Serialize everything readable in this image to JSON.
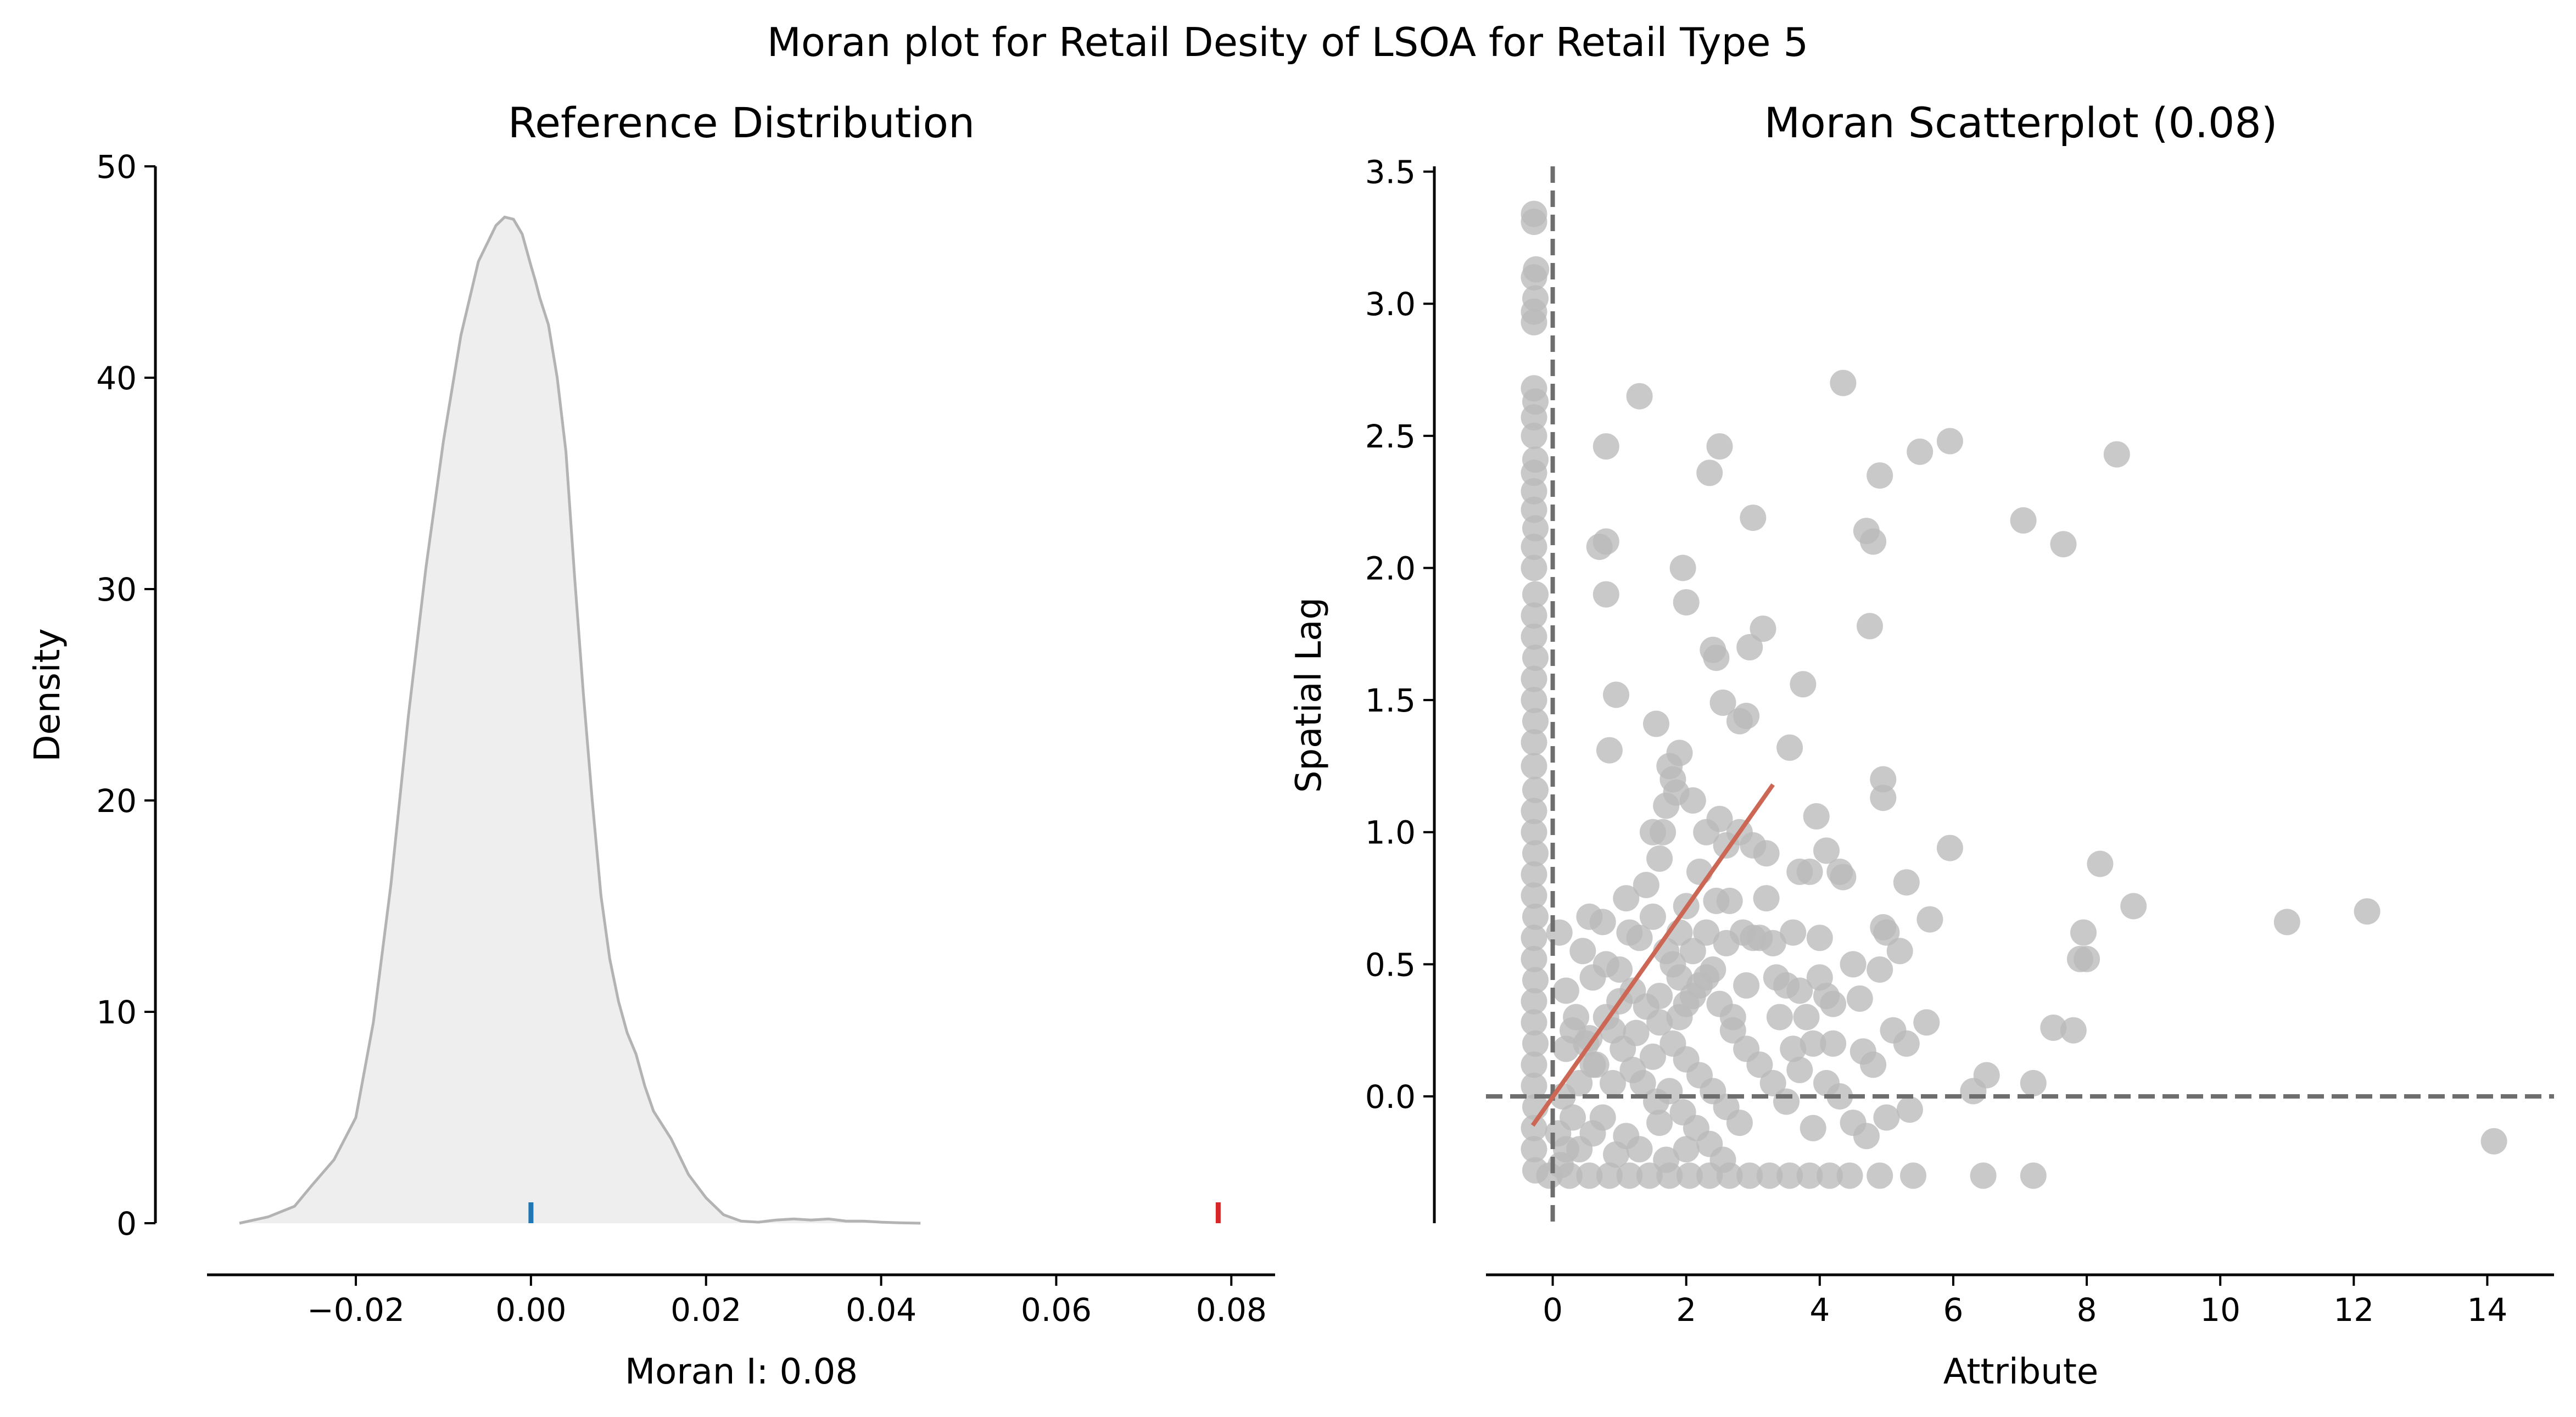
{
  "figure": {
    "suptitle": "Moran plot for Retail Desity of LSOA for Retail Type 5"
  },
  "chart_data": [
    {
      "type": "area",
      "title": "Reference Distribution",
      "xlabel": "Moran I: 0.08",
      "ylabel": "Density",
      "xlim": [
        -0.037,
        0.085
      ],
      "ylim": [
        0,
        50
      ],
      "x_ticks": [
        -0.02,
        0.0,
        0.02,
        0.04,
        0.06,
        0.08
      ],
      "x_tick_labels": [
        "−0.02",
        "0.00",
        "0.02",
        "0.04",
        "0.06",
        "0.08"
      ],
      "y_ticks": [
        0,
        10,
        20,
        30,
        40,
        50
      ],
      "y_tick_labels": [
        "0",
        "10",
        "20",
        "30",
        "40",
        "50"
      ],
      "grid": false,
      "fill_color": "#eeeeee",
      "line_color": "#b3b3b3",
      "kde": {
        "x": [
          -0.0333,
          -0.03,
          -0.027,
          -0.025,
          -0.0225,
          -0.02,
          -0.018,
          -0.016,
          -0.014,
          -0.012,
          -0.01,
          -0.008,
          -0.006,
          -0.004,
          -0.003,
          -0.002,
          -0.001,
          0.0,
          0.0005,
          0.001,
          0.002,
          0.003,
          0.004,
          0.005,
          0.006,
          0.007,
          0.008,
          0.009,
          0.01,
          0.011,
          0.012,
          0.013,
          0.014,
          0.016,
          0.018,
          0.02,
          0.022,
          0.024,
          0.026,
          0.028,
          0.03,
          0.032,
          0.034,
          0.036,
          0.038,
          0.04,
          0.042,
          0.0445
        ],
        "density": [
          0,
          0.3,
          0.8,
          1.8,
          3.0,
          5.0,
          9.5,
          16.0,
          24.0,
          31.0,
          37.0,
          42.0,
          45.5,
          47.2,
          47.6,
          47.5,
          46.8,
          45.3,
          44.6,
          43.8,
          42.5,
          40.0,
          36.5,
          30.5,
          25.0,
          20.0,
          15.5,
          12.5,
          10.5,
          9.0,
          8.0,
          6.5,
          5.3,
          4.0,
          2.3,
          1.2,
          0.4,
          0.1,
          0.05,
          0.15,
          0.2,
          0.15,
          0.2,
          0.1,
          0.1,
          0.05,
          0.02,
          0
        ]
      },
      "rug_markers": [
        {
          "x": 0.0,
          "color": "#1f77b4"
        },
        {
          "x": 0.0785,
          "color": "#d62728"
        }
      ]
    },
    {
      "type": "scatter",
      "title": "Moran Scatterplot (0.08)",
      "xlabel": "Attribute",
      "ylabel": "Spatial Lag",
      "xlim": [
        -1.0,
        15.0
      ],
      "ylim": [
        -0.48,
        3.52
      ],
      "x_ticks": [
        0,
        2,
        4,
        6,
        8,
        10,
        12,
        14
      ],
      "x_tick_labels": [
        "0",
        "2",
        "4",
        "6",
        "8",
        "10",
        "12",
        "14"
      ],
      "y_ticks": [
        0.0,
        0.5,
        1.0,
        1.5,
        2.0,
        2.5,
        3.0,
        3.5
      ],
      "y_tick_labels": [
        "0.0",
        "0.5",
        "1.0",
        "1.5",
        "2.0",
        "2.5",
        "3.0",
        "3.5"
      ],
      "grid": false,
      "point_color": "#bababa",
      "regression_color": "#cc6655",
      "reference_lines_color": "#6e6e6e",
      "reference_lines": {
        "x": 0,
        "y": 0
      },
      "regression_line": {
        "x": [
          -0.3,
          3.3
        ],
        "y": [
          -0.11,
          1.18
        ]
      },
      "points": [
        [
          -0.28,
          3.34
        ],
        [
          -0.28,
          3.31
        ],
        [
          -0.25,
          3.13
        ],
        [
          -0.28,
          3.1
        ],
        [
          -0.26,
          3.02
        ],
        [
          -0.28,
          2.97
        ],
        [
          -0.28,
          2.93
        ],
        [
          -0.28,
          2.68
        ],
        [
          -0.26,
          2.63
        ],
        [
          -0.28,
          2.57
        ],
        [
          -0.28,
          2.5
        ],
        [
          -0.26,
          2.41
        ],
        [
          -0.28,
          2.36
        ],
        [
          -0.28,
          2.29
        ],
        [
          -0.28,
          2.22
        ],
        [
          -0.26,
          2.15
        ],
        [
          -0.28,
          2.08
        ],
        [
          -0.28,
          2.0
        ],
        [
          -0.26,
          1.9
        ],
        [
          -0.28,
          1.82
        ],
        [
          -0.28,
          1.74
        ],
        [
          -0.26,
          1.66
        ],
        [
          -0.28,
          1.58
        ],
        [
          -0.28,
          1.5
        ],
        [
          -0.26,
          1.42
        ],
        [
          -0.28,
          1.34
        ],
        [
          -0.28,
          1.25
        ],
        [
          -0.26,
          1.16
        ],
        [
          -0.28,
          1.08
        ],
        [
          -0.28,
          1.0
        ],
        [
          -0.26,
          0.92
        ],
        [
          -0.28,
          0.84
        ],
        [
          -0.28,
          0.76
        ],
        [
          -0.26,
          0.68
        ],
        [
          -0.28,
          0.6
        ],
        [
          -0.28,
          0.52
        ],
        [
          -0.26,
          0.44
        ],
        [
          -0.28,
          0.36
        ],
        [
          -0.28,
          0.28
        ],
        [
          -0.26,
          0.2
        ],
        [
          -0.28,
          0.12
        ],
        [
          -0.28,
          0.04
        ],
        [
          -0.26,
          -0.04
        ],
        [
          -0.28,
          -0.12
        ],
        [
          -0.28,
          -0.2
        ],
        [
          -0.26,
          -0.28
        ],
        [
          -0.05,
          -0.3
        ],
        [
          0.25,
          -0.3
        ],
        [
          0.55,
          -0.3
        ],
        [
          0.85,
          -0.3
        ],
        [
          1.15,
          -0.3
        ],
        [
          1.45,
          -0.3
        ],
        [
          1.75,
          -0.3
        ],
        [
          2.05,
          -0.3
        ],
        [
          2.35,
          -0.3
        ],
        [
          2.65,
          -0.3
        ],
        [
          2.95,
          -0.3
        ],
        [
          3.25,
          -0.3
        ],
        [
          3.55,
          -0.3
        ],
        [
          3.85,
          -0.3
        ],
        [
          4.15,
          -0.3
        ],
        [
          4.45,
          -0.3
        ],
        [
          4.9,
          -0.3
        ],
        [
          5.4,
          -0.3
        ],
        [
          6.45,
          -0.3
        ],
        [
          7.2,
          -0.3
        ],
        [
          0.12,
          -0.26
        ],
        [
          0.2,
          -0.2
        ],
        [
          0.08,
          -0.14
        ],
        [
          0.3,
          -0.08
        ],
        [
          0.15,
          0.0
        ],
        [
          0.4,
          0.05
        ],
        [
          0.6,
          0.12
        ],
        [
          0.2,
          0.18
        ],
        [
          0.3,
          0.25
        ],
        [
          0.55,
          0.22
        ],
        [
          0.8,
          0.3
        ],
        [
          1.0,
          0.36
        ],
        [
          1.2,
          0.4
        ],
        [
          1.4,
          0.34
        ],
        [
          1.6,
          0.28
        ],
        [
          1.8,
          0.2
        ],
        [
          2.0,
          0.14
        ],
        [
          2.2,
          0.08
        ],
        [
          2.4,
          0.02
        ],
        [
          2.6,
          -0.04
        ],
        [
          2.8,
          -0.1
        ],
        [
          1.1,
          -0.15
        ],
        [
          1.3,
          -0.2
        ],
        [
          1.6,
          -0.1
        ],
        [
          0.9,
          0.05
        ],
        [
          1.2,
          0.1
        ],
        [
          1.5,
          0.15
        ],
        [
          1.9,
          0.3
        ],
        [
          2.1,
          0.38
        ],
        [
          2.3,
          0.45
        ],
        [
          2.5,
          0.35
        ],
        [
          2.7,
          0.25
        ],
        [
          2.9,
          0.18
        ],
        [
          3.1,
          0.12
        ],
        [
          3.3,
          0.05
        ],
        [
          3.5,
          -0.02
        ],
        [
          3.7,
          0.1
        ],
        [
          3.9,
          0.2
        ],
        [
          1.7,
          0.55
        ],
        [
          1.9,
          0.62
        ],
        [
          2.0,
          0.72
        ],
        [
          1.3,
          0.6
        ],
        [
          1.5,
          0.68
        ],
        [
          1.8,
          0.5
        ],
        [
          0.6,
          0.45
        ],
        [
          0.8,
          0.5
        ],
        [
          0.35,
          0.3
        ],
        [
          0.1,
          0.62
        ],
        [
          0.55,
          0.68
        ],
        [
          0.75,
          0.66
        ],
        [
          1.1,
          0.75
        ],
        [
          1.4,
          0.8
        ],
        [
          1.6,
          0.9
        ],
        [
          1.5,
          1.0
        ],
        [
          1.7,
          1.1
        ],
        [
          1.8,
          1.2
        ],
        [
          1.9,
          1.3
        ],
        [
          1.75,
          1.25
        ],
        [
          1.85,
          1.15
        ],
        [
          1.65,
          1.0
        ],
        [
          2.1,
          1.12
        ],
        [
          2.3,
          1.0
        ],
        [
          2.5,
          1.05
        ],
        [
          2.6,
          0.95
        ],
        [
          2.8,
          1.0
        ],
        [
          3.0,
          0.95
        ],
        [
          3.2,
          0.92
        ],
        [
          2.2,
          0.85
        ],
        [
          2.45,
          0.74
        ],
        [
          2.65,
          0.74
        ],
        [
          2.85,
          0.62
        ],
        [
          3.1,
          0.6
        ],
        [
          3.3,
          0.58
        ],
        [
          3.35,
          0.45
        ],
        [
          3.5,
          0.42
        ],
        [
          3.7,
          0.4
        ],
        [
          3.8,
          0.3
        ],
        [
          4.0,
          0.45
        ],
        [
          4.2,
          0.2
        ],
        [
          4.3,
          0.0
        ],
        [
          4.5,
          -0.1
        ],
        [
          4.7,
          -0.15
        ],
        [
          4.9,
          0.48
        ],
        [
          5.0,
          0.62
        ],
        [
          5.2,
          0.55
        ],
        [
          5.1,
          0.25
        ],
        [
          5.3,
          0.2
        ],
        [
          5.6,
          0.28
        ],
        [
          5.0,
          -0.08
        ],
        [
          5.35,
          -0.05
        ],
        [
          6.3,
          0.02
        ],
        [
          6.5,
          0.08
        ],
        [
          7.2,
          0.05
        ],
        [
          7.5,
          0.26
        ],
        [
          7.8,
          0.25
        ],
        [
          7.9,
          0.52
        ],
        [
          8.0,
          0.52
        ],
        [
          7.95,
          0.62
        ],
        [
          8.7,
          0.72
        ],
        [
          11.0,
          0.66
        ],
        [
          12.2,
          0.7
        ],
        [
          14.1,
          -0.17
        ],
        [
          8.2,
          0.88
        ],
        [
          5.95,
          0.94
        ],
        [
          5.65,
          0.67
        ],
        [
          5.3,
          0.81
        ],
        [
          4.95,
          0.64
        ],
        [
          4.8,
          0.12
        ],
        [
          4.65,
          0.17
        ],
        [
          4.6,
          0.37
        ],
        [
          4.95,
          1.13
        ],
        [
          4.95,
          1.2
        ],
        [
          3.95,
          1.06
        ],
        [
          4.3,
          0.85
        ],
        [
          4.35,
          0.83
        ],
        [
          4.1,
          0.93
        ],
        [
          3.7,
          0.85
        ],
        [
          3.85,
          0.85
        ],
        [
          3.55,
          1.32
        ],
        [
          3.75,
          1.56
        ],
        [
          3.15,
          1.77
        ],
        [
          2.9,
          1.44
        ],
        [
          2.8,
          1.42
        ],
        [
          2.55,
          1.49
        ],
        [
          2.45,
          1.66
        ],
        [
          2.4,
          1.69
        ],
        [
          2.0,
          1.87
        ],
        [
          1.95,
          2.0
        ],
        [
          1.55,
          1.41
        ],
        [
          0.95,
          1.52
        ],
        [
          0.85,
          1.31
        ],
        [
          0.8,
          1.9
        ],
        [
          0.8,
          2.1
        ],
        [
          0.7,
          2.08
        ],
        [
          0.8,
          2.46
        ],
        [
          1.3,
          2.65
        ],
        [
          2.35,
          2.36
        ],
        [
          2.5,
          2.46
        ],
        [
          3.0,
          2.19
        ],
        [
          4.35,
          2.7
        ],
        [
          4.9,
          2.35
        ],
        [
          5.5,
          2.44
        ],
        [
          5.95,
          2.48
        ],
        [
          4.7,
          2.14
        ],
        [
          4.8,
          2.1
        ],
        [
          4.75,
          1.78
        ],
        [
          7.05,
          2.18
        ],
        [
          7.65,
          2.09
        ],
        [
          8.45,
          2.43
        ],
        [
          2.95,
          1.7
        ],
        [
          3.0,
          0.6
        ],
        [
          2.6,
          0.58
        ],
        [
          2.4,
          0.48
        ],
        [
          2.2,
          0.42
        ],
        [
          2.0,
          0.35
        ],
        [
          0.5,
          0.2
        ],
        [
          0.65,
          0.12
        ],
        [
          0.9,
          0.25
        ],
        [
          1.05,
          0.18
        ],
        [
          1.25,
          0.24
        ],
        [
          1.35,
          0.05
        ],
        [
          1.55,
          -0.02
        ],
        [
          1.75,
          0.02
        ],
        [
          1.95,
          -0.06
        ],
        [
          2.15,
          -0.12
        ],
        [
          2.35,
          -0.18
        ],
        [
          2.55,
          -0.24
        ],
        [
          2.0,
          -0.2
        ],
        [
          1.7,
          -0.24
        ],
        [
          0.4,
          -0.2
        ],
        [
          0.6,
          -0.14
        ],
        [
          0.75,
          -0.08
        ],
        [
          0.95,
          -0.22
        ],
        [
          3.6,
          0.18
        ],
        [
          4.1,
          0.05
        ],
        [
          3.9,
          -0.12
        ],
        [
          0.2,
          0.4
        ],
        [
          0.45,
          0.55
        ],
        [
          1.0,
          0.48
        ],
        [
          1.15,
          0.62
        ],
        [
          2.7,
          0.3
        ],
        [
          2.9,
          0.42
        ],
        [
          3.4,
          0.3
        ],
        [
          3.6,
          0.62
        ],
        [
          3.2,
          0.75
        ],
        [
          4.0,
          0.6
        ],
        [
          4.5,
          0.5
        ],
        [
          4.2,
          0.35
        ],
        [
          4.1,
          0.38
        ],
        [
          2.3,
          0.62
        ],
        [
          2.1,
          0.55
        ],
        [
          1.9,
          0.45
        ],
        [
          1.6,
          0.38
        ]
      ]
    }
  ]
}
